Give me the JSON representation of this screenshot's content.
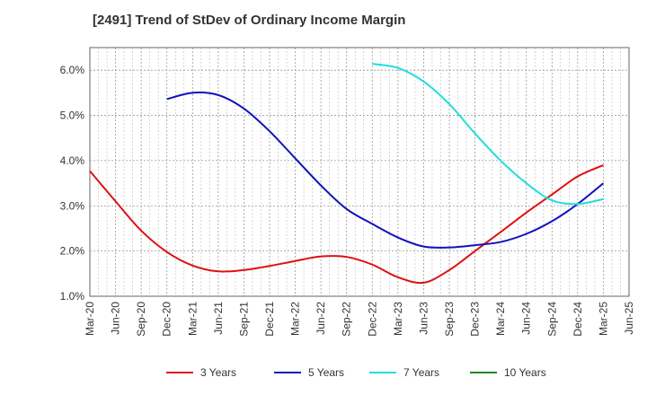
{
  "title": "[2491]  Trend of StDev of Ordinary Income Margin",
  "chart_data": {
    "type": "line",
    "title": "[2491]  Trend of StDev of Ordinary Income Margin",
    "xlabel": "",
    "ylabel": "",
    "x_ticks": [
      "Mar-20",
      "Jun-20",
      "Sep-20",
      "Dec-20",
      "Mar-21",
      "Jun-21",
      "Sep-21",
      "Dec-21",
      "Mar-22",
      "Jun-22",
      "Sep-22",
      "Dec-22",
      "Mar-23",
      "Jun-23",
      "Sep-23",
      "Dec-23",
      "Mar-24",
      "Jun-24",
      "Sep-24",
      "Dec-24",
      "Mar-25",
      "Jun-25"
    ],
    "y_ticks": [
      "1.0%",
      "2.0%",
      "3.0%",
      "4.0%",
      "5.0%",
      "6.0%"
    ],
    "ylim": [
      1.0,
      6.5
    ],
    "grid": true,
    "legend_position": "bottom",
    "series": [
      {
        "name": "3 Years",
        "color": "#dd1111",
        "x": [
          "Mar-20",
          "Jun-20",
          "Sep-20",
          "Dec-20",
          "Mar-21",
          "Jun-21",
          "Sep-21",
          "Dec-21",
          "Mar-22",
          "Jun-22",
          "Sep-22",
          "Dec-22",
          "Mar-23",
          "Jun-23",
          "Sep-23",
          "Dec-23",
          "Mar-24",
          "Jun-24",
          "Sep-24",
          "Dec-24",
          "Mar-25"
        ],
        "values": [
          3.77,
          3.1,
          2.45,
          1.98,
          1.68,
          1.55,
          1.58,
          1.67,
          1.78,
          1.88,
          1.87,
          1.7,
          1.42,
          1.3,
          1.58,
          2.0,
          2.42,
          2.85,
          3.25,
          3.65,
          3.9
        ]
      },
      {
        "name": "5 Years",
        "color": "#1111bb",
        "x": [
          "Dec-20",
          "Mar-21",
          "Jun-21",
          "Sep-21",
          "Dec-21",
          "Mar-22",
          "Jun-22",
          "Sep-22",
          "Dec-22",
          "Mar-23",
          "Jun-23",
          "Sep-23",
          "Dec-23",
          "Mar-24",
          "Jun-24",
          "Sep-24",
          "Dec-24",
          "Mar-25"
        ],
        "values": [
          5.36,
          5.5,
          5.45,
          5.15,
          4.65,
          4.05,
          3.45,
          2.93,
          2.6,
          2.3,
          2.1,
          2.08,
          2.13,
          2.2,
          2.38,
          2.66,
          3.04,
          3.5
        ]
      },
      {
        "name": "7 Years",
        "color": "#22dddd",
        "x": [
          "Dec-22",
          "Mar-23",
          "Jun-23",
          "Sep-23",
          "Dec-23",
          "Mar-24",
          "Jun-24",
          "Sep-24",
          "Dec-24",
          "Mar-25"
        ],
        "values": [
          6.14,
          6.05,
          5.75,
          5.25,
          4.6,
          4.0,
          3.5,
          3.12,
          3.04,
          3.15
        ]
      },
      {
        "name": "10 Years",
        "color": "#228822",
        "x": [],
        "values": []
      }
    ]
  }
}
